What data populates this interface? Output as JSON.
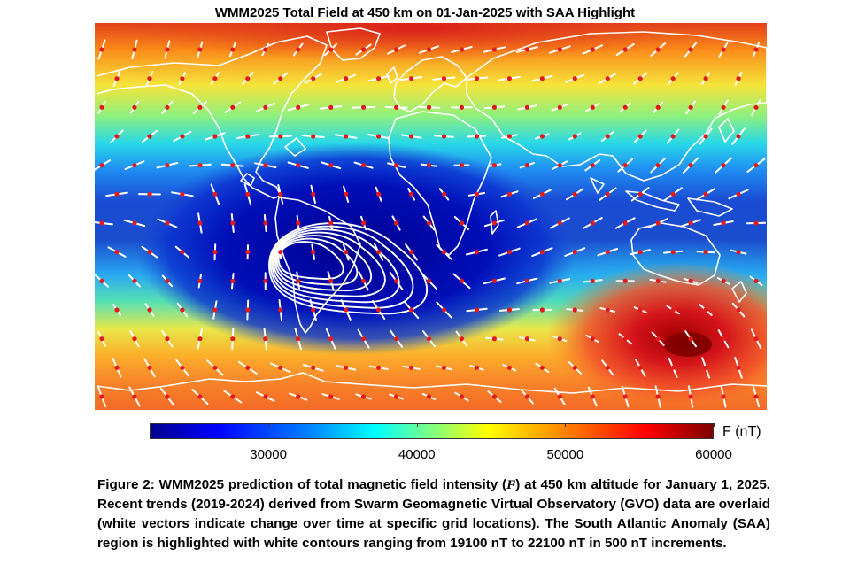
{
  "chart_data": {
    "type": "heatmap",
    "title": "WMM2025 Total Field at 450 km on 01-Jan-2025 with SAA Highlight",
    "colorbar": {
      "label": "F (nT)",
      "ticks": [
        30000,
        40000,
        50000,
        60000
      ],
      "tick_labels": [
        "30000",
        "40000",
        "50000",
        "60000"
      ],
      "range": [
        22000,
        60000
      ],
      "colormap": "jet"
    },
    "overlays": {
      "gvo_vectors": "white vectors indicating change over time at grid locations (red dots)",
      "saa_contours": {
        "color": "#ffffff",
        "levels_nT": [
          19100,
          19600,
          20100,
          20600,
          21100,
          21600,
          22100
        ]
      },
      "coastlines": "white"
    }
  },
  "colors": {
    "contour": "#ffffff",
    "vector": "#ffffff",
    "gvo_dot": "#e31a1c"
  },
  "caption": {
    "label": "Figure 2:",
    "part1": " WMM2025 prediction of total magnetic field intensity (",
    "variable": "F",
    "part2": ") at 450 km altitude for January 1, 2025. Recent trends (2019-2024) derived from Swarm Geomagnetic Virtual Observatory (GVO) data are overlaid (white vectors indicate change over time at specific grid locations). The South Atlantic Anomaly (SAA) region is highlighted with white contours ranging from 19100 nT to 22100 nT in 500 nT increments."
  }
}
